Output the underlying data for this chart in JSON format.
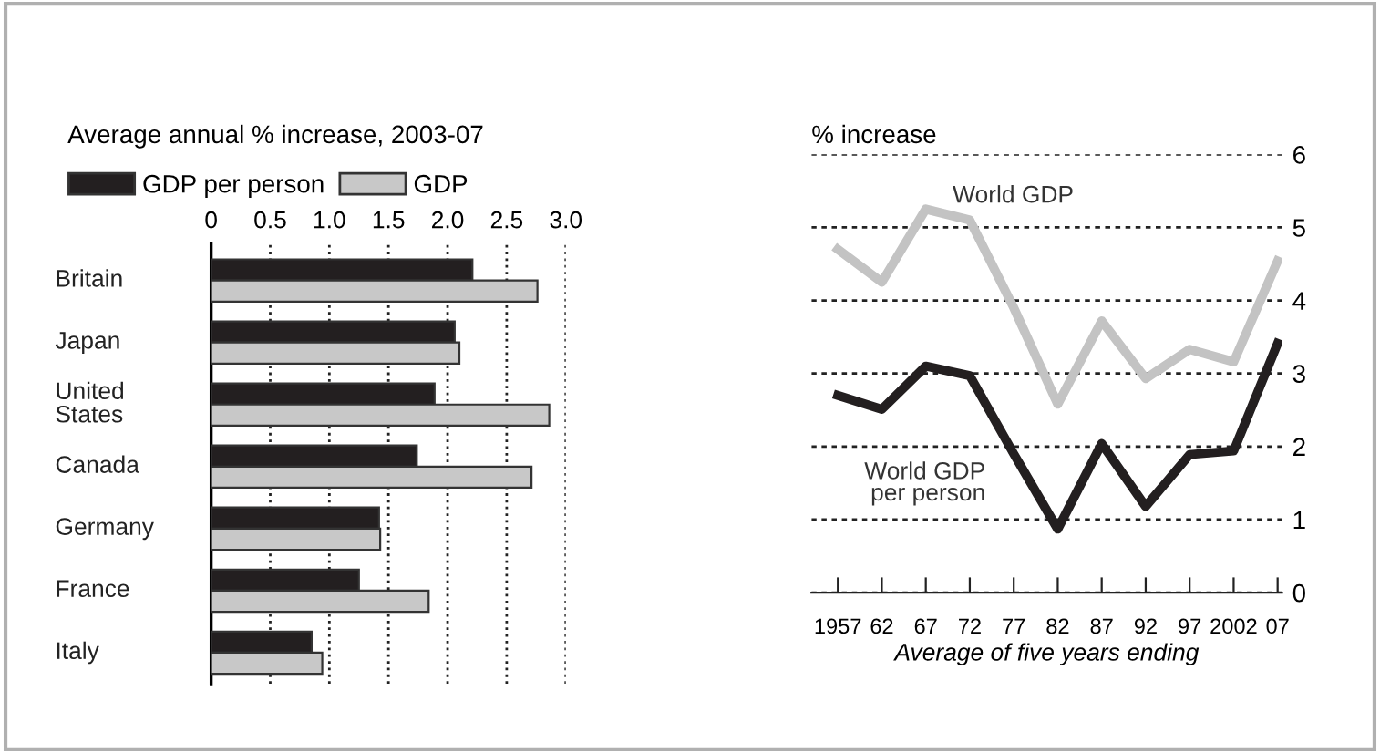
{
  "chart_data": [
    {
      "type": "bar",
      "orientation": "horizontal",
      "title": "Average annual % increase, 2003-07",
      "categories": [
        "Britain",
        "Japan",
        "United\nStates",
        "Canada",
        "Germany",
        "France",
        "Italy"
      ],
      "series": [
        {
          "name": "GDP per person",
          "color": "#231f20",
          "values": [
            2.21,
            2.06,
            1.89,
            1.74,
            1.42,
            1.25,
            0.85
          ]
        },
        {
          "name": "GDP",
          "color": "#c8c8c8",
          "values": [
            2.76,
            2.1,
            2.86,
            2.71,
            1.43,
            1.84,
            0.94
          ]
        }
      ],
      "xlim": [
        0,
        3.0
      ],
      "xticks": [
        0,
        0.5,
        {
          "value": 1,
          "label": "1.0"
        },
        1.5,
        {
          "value": 2,
          "label": "2.0"
        },
        2.5,
        {
          "value": 3,
          "label": "3.0"
        }
      ],
      "grid": "x",
      "legend": "top left"
    },
    {
      "type": "line",
      "title": "% increase",
      "xlabel": "Average of five years ending",
      "x": [
        1957,
        1962,
        1967,
        1972,
        1977,
        1982,
        1987,
        1992,
        1997,
        2002,
        2007
      ],
      "series": [
        {
          "name": "World GDP",
          "color": "#c3c3c3",
          "values": [
            4.7,
            4.25,
            5.25,
            5.1,
            3.9,
            2.58,
            3.72,
            2.93,
            3.33,
            3.16,
            4.54
          ]
        },
        {
          "name": "World GDP\nper person",
          "color": "#231f20",
          "values": [
            2.7,
            2.51,
            3.1,
            2.97,
            1.9,
            0.87,
            2.04,
            1.18,
            1.89,
            1.94,
            3.41
          ]
        }
      ],
      "xlim": [
        1954,
        2007.5
      ],
      "xticks": [
        {
          "value": 1957,
          "label": "1957"
        },
        {
          "value": 1962,
          "label": "62"
        },
        {
          "value": 1967,
          "label": "67"
        },
        {
          "value": 1972,
          "label": "72"
        },
        {
          "value": 1977,
          "label": "77"
        },
        {
          "value": 1982,
          "label": "82"
        },
        {
          "value": 1987,
          "label": "87"
        },
        {
          "value": 1992,
          "label": "92"
        },
        {
          "value": 1997,
          "label": "97"
        },
        {
          "value": 2002,
          "label": "2002"
        },
        {
          "value": 2007,
          "label": "07"
        }
      ],
      "ylim": [
        0,
        6
      ],
      "yticks": [
        0,
        1,
        2,
        3,
        4,
        5,
        6
      ],
      "grid": "y",
      "line_style": "solid",
      "marker": "none"
    }
  ]
}
